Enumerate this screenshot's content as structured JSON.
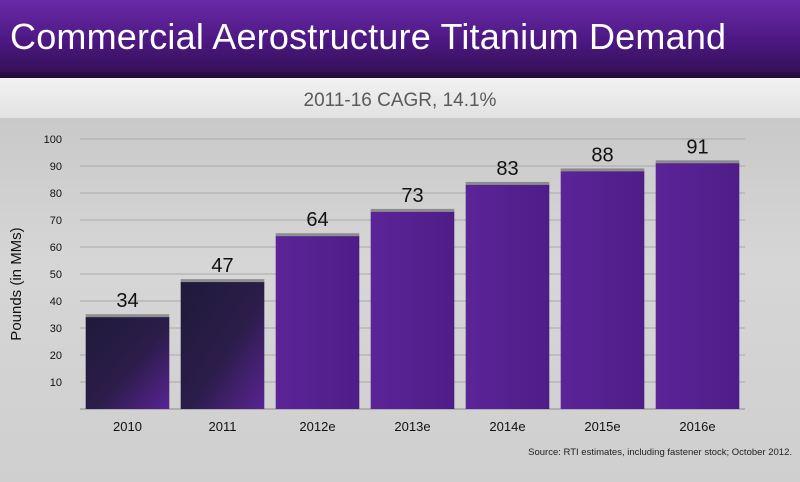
{
  "header": {
    "title": "Commercial Aerostructure Titanium Demand",
    "subtitle": "2011-16 CAGR, 14.1%"
  },
  "source_note": "Source: RTI estimates, including fastener stock; October 2012.",
  "colors": {
    "bar_dark": "#2a1a45",
    "bar_purple": "#5a2394",
    "header": "#4b1780"
  },
  "chart_data": {
    "type": "bar",
    "title": "Commercial Aerostructure Titanium Demand",
    "subtitle": "2011-16 CAGR, 14.1%",
    "xlabel": "",
    "ylabel": "Pounds (in MMs)",
    "ylim": [
      0,
      100
    ],
    "yticks": [
      10,
      20,
      30,
      40,
      50,
      60,
      70,
      80,
      90,
      100
    ],
    "categories": [
      "2010",
      "2011",
      "2012e",
      "2013e",
      "2014e",
      "2015e",
      "2016e"
    ],
    "values": [
      34,
      47,
      64,
      73,
      83,
      88,
      91
    ],
    "data_labels": [
      "34",
      "47",
      "64",
      "73",
      "83",
      "88",
      "91"
    ],
    "grid": true,
    "legend": "none"
  }
}
